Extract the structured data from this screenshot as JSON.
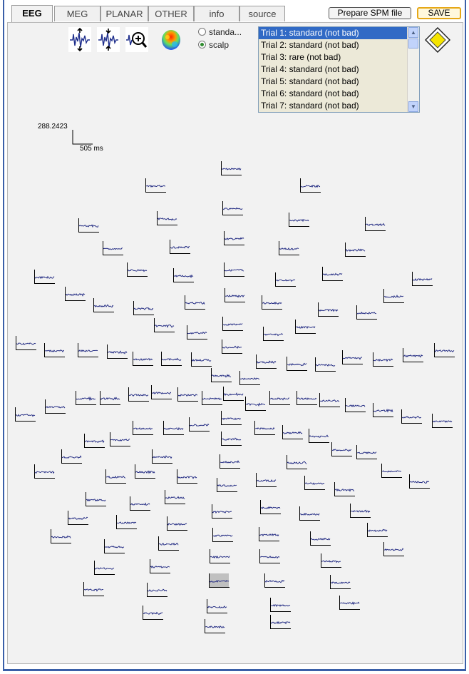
{
  "tabs": [
    {
      "label": "EEG",
      "active": true
    },
    {
      "label": "MEG",
      "active": false
    },
    {
      "label": "PLANAR",
      "active": false
    },
    {
      "label": "OTHER",
      "active": false
    },
    {
      "label": "info",
      "active": false
    },
    {
      "label": "source",
      "active": false
    }
  ],
  "buttons": {
    "prepare_spm": "Prepare SPM file",
    "save": "SAVE"
  },
  "tools": [
    "scale-amplitude-icon",
    "scale-time-icon",
    "zoom-trace-icon",
    "scalp-map-icon"
  ],
  "display_mode": {
    "options": [
      "standa...",
      "scalp"
    ],
    "selected_index": 1
  },
  "trials": {
    "selected_index": 0,
    "items": [
      "Trial 1: standard (not bad)",
      "Trial 2: standard (not bad)",
      "Trial 3: rare (not bad)",
      "Trial 4: standard (not bad)",
      "Trial 5: standard (not bad)",
      "Trial 6: standard (not bad)",
      "Trial 7: standard (not bad)"
    ]
  },
  "scale": {
    "amplitude": "288.2423",
    "time": "505 ms"
  },
  "colors": {
    "trace": "#1a237e",
    "axis": "#000000",
    "selected_bg": "#c0c0c0",
    "accent": "#316ac5"
  },
  "channel_count": 128,
  "selected_channel": 119
}
